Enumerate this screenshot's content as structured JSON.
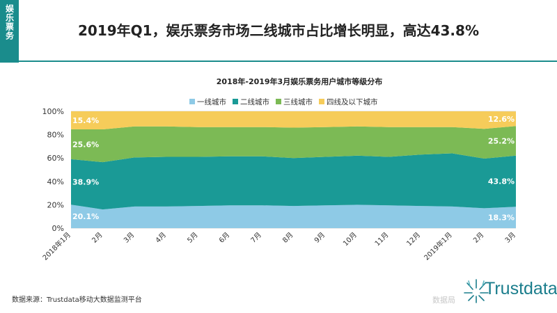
{
  "side_tag": "娱乐票务",
  "title": "2019年Q1，娱乐票务市场二线城市占比增长明显，高达43.8%",
  "footer": "数据来源：Trustdata移动大数据监测平台",
  "watermark": "数据局",
  "logo_text": "Trustdata",
  "colors": {
    "tier1": "#8ecae6",
    "tier2": "#1a9a96",
    "tier3": "#7cba55",
    "tier4": "#f6cc5a",
    "brand": "#1a8c8c"
  },
  "chart_data": {
    "type": "area",
    "stacked": true,
    "percent": true,
    "title": "2018年-2019年3月娱乐票务用户城市等级分布",
    "categories": [
      "2018年1月",
      "2月",
      "3月",
      "4月",
      "5月",
      "6月",
      "7月",
      "8月",
      "9月",
      "10月",
      "11月",
      "12月",
      "2019年1月",
      "2月",
      "3月"
    ],
    "ylim": [
      0,
      100
    ],
    "yticks": [
      "0%",
      "20%",
      "40%",
      "60%",
      "80%",
      "100%"
    ],
    "legend_position": "top",
    "series": [
      {
        "name": "一线城市",
        "values": [
          20.1,
          16,
          18.5,
          18.5,
          19,
          19.5,
          19.5,
          19,
          19.5,
          20,
          19.5,
          19,
          18.5,
          17,
          18.3
        ]
      },
      {
        "name": "二线城市",
        "values": [
          38.9,
          40.5,
          42,
          42.5,
          42,
          42,
          42,
          41,
          41.5,
          42,
          41.5,
          44,
          45.5,
          42.5,
          43.8
        ]
      },
      {
        "name": "三线城市",
        "values": [
          25.6,
          28,
          26.5,
          26,
          25.5,
          25,
          25,
          26,
          25.5,
          25,
          25.5,
          23.5,
          22.5,
          25.5,
          25.2
        ]
      },
      {
        "name": "四线及以下城市",
        "values": [
          15.4,
          15.5,
          13,
          13,
          13.5,
          13.5,
          13.5,
          14,
          13.5,
          13,
          13.5,
          13.5,
          13.5,
          15,
          12.6
        ]
      }
    ],
    "data_labels": [
      {
        "series": 0,
        "index": 0,
        "text": "20.1%"
      },
      {
        "series": 1,
        "index": 0,
        "text": "38.9%"
      },
      {
        "series": 2,
        "index": 0,
        "text": "25.6%"
      },
      {
        "series": 3,
        "index": 0,
        "text": "15.4%"
      },
      {
        "series": 0,
        "index": 14,
        "text": "18.3%"
      },
      {
        "series": 1,
        "index": 14,
        "text": "43.8%"
      },
      {
        "series": 2,
        "index": 14,
        "text": "25.2%"
      },
      {
        "series": 3,
        "index": 14,
        "text": "12.6%"
      }
    ]
  }
}
